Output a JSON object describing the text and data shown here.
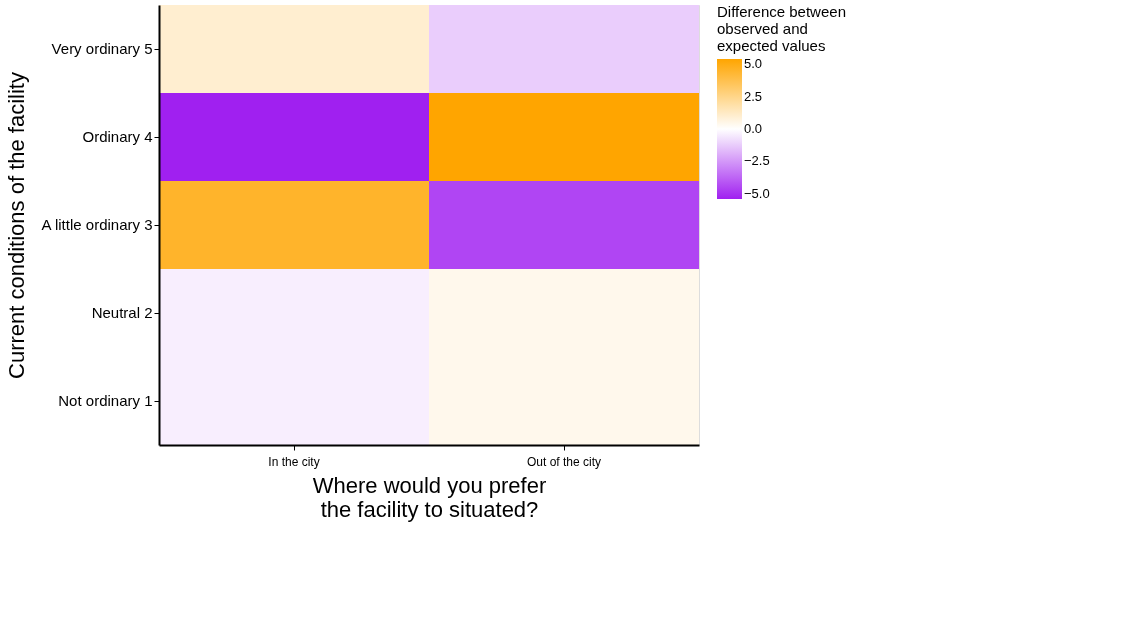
{
  "chart_data": {
    "type": "heatmap",
    "xlabel": "Where would you prefer\nthe facility to situated?",
    "ylabel": "Current conditions of the facility",
    "legend_title": "Difference between\nobserved and\nexpected values",
    "categories": [
      "In the city",
      "Out of the city"
    ],
    "y_categories": [
      "Very ordinary 5",
      "Ordinary 4",
      "A little ordinary 3",
      "Neutral 2",
      "Not ordinary 1"
    ],
    "cells": [
      [
        1.0,
        -1.2
      ],
      [
        -5.4,
        5.4
      ],
      [
        4.5,
        -4.5
      ],
      [
        -0.4,
        0.4
      ],
      [
        -0.4,
        0.4
      ]
    ],
    "clim": [
      -5.4,
      5.4
    ],
    "cticks": [
      {
        "value": -5,
        "label": "−5.0"
      },
      {
        "value": -2.5,
        "label": "−2.5"
      },
      {
        "value": 0,
        "label": "0.0"
      },
      {
        "value": 2.5,
        "label": "2.5"
      },
      {
        "value": 5,
        "label": "5.0"
      }
    ]
  }
}
